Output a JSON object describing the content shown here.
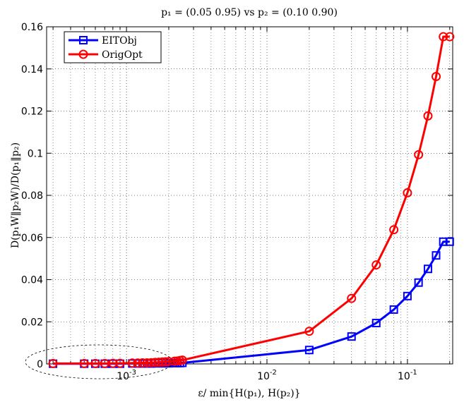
{
  "chart_data": {
    "type": "line",
    "title": "p₁ = (0.05 0.95) vs p₂ = (0.10 0.90)",
    "xlabel": "ε/ min{H(p₁), H(p₂)}",
    "ylabel": "D(p₁W‖p₂W)/D(p₁‖p₂)",
    "x_scale": "log",
    "xlim": [
      0.00027,
      0.21
    ],
    "ylim": [
      0,
      0.16
    ],
    "grid": true,
    "legend_position": "top-left",
    "x_ticks": [
      {
        "value": 0.001,
        "base": "10",
        "exp": "-3"
      },
      {
        "value": 0.01,
        "base": "10",
        "exp": "-2"
      },
      {
        "value": 0.1,
        "base": "10",
        "exp": "-1"
      }
    ],
    "y_ticks": [
      {
        "value": 0,
        "label": "0"
      },
      {
        "value": 0.02,
        "label": "0.02"
      },
      {
        "value": 0.04,
        "label": "0.04"
      },
      {
        "value": 0.06,
        "label": "0.06"
      },
      {
        "value": 0.08,
        "label": "0.08"
      },
      {
        "value": 0.1,
        "label": "0.1"
      },
      {
        "value": 0.12,
        "label": "0.12"
      },
      {
        "value": 0.14,
        "label": "0.14"
      },
      {
        "value": 0.16,
        "label": "0.16"
      }
    ],
    "series": [
      {
        "name": "EITObj",
        "color": "#0000ff",
        "marker": "square",
        "x": [
          0.0003,
          0.0005,
          0.0006,
          0.0007,
          0.0008,
          0.0009,
          0.0011,
          0.0012,
          0.0013,
          0.0014,
          0.0015,
          0.0016,
          0.0017,
          0.0018,
          0.0019,
          0.002,
          0.0022,
          0.0023,
          0.0024,
          0.0025,
          0.02,
          0.04,
          0.06,
          0.08,
          0.1,
          0.12,
          0.14,
          0.16,
          0.18,
          0.2
        ],
        "y": [
          0.0001,
          0.0001,
          0.0001,
          0.0001,
          0.0001,
          0.0001,
          0.0002,
          0.0002,
          0.0002,
          0.0002,
          0.0002,
          0.0003,
          0.0003,
          0.0003,
          0.0003,
          0.0003,
          0.0004,
          0.0004,
          0.0004,
          0.0005,
          0.0066,
          0.013,
          0.0194,
          0.0258,
          0.0322,
          0.0386,
          0.0451,
          0.0515,
          0.058,
          0.058
        ]
      },
      {
        "name": "OrigOpt",
        "color": "#ff0000",
        "marker": "circle",
        "x": [
          0.0003,
          0.0005,
          0.0006,
          0.0007,
          0.0008,
          0.0009,
          0.0011,
          0.0012,
          0.0013,
          0.0014,
          0.0015,
          0.0016,
          0.0017,
          0.0018,
          0.0019,
          0.002,
          0.0022,
          0.0023,
          0.0024,
          0.0025,
          0.02,
          0.04,
          0.06,
          0.08,
          0.1,
          0.12,
          0.14,
          0.16,
          0.18,
          0.2
        ],
        "y": [
          0.0002,
          0.0002,
          0.0002,
          0.0002,
          0.0003,
          0.0003,
          0.0004,
          0.0004,
          0.0005,
          0.0005,
          0.0006,
          0.0007,
          0.0008,
          0.0009,
          0.001,
          0.0011,
          0.0013,
          0.0014,
          0.0016,
          0.0018,
          0.0155,
          0.0311,
          0.047,
          0.0637,
          0.0812,
          0.0993,
          0.1177,
          0.1364,
          0.1553,
          0.1553
        ]
      }
    ]
  }
}
